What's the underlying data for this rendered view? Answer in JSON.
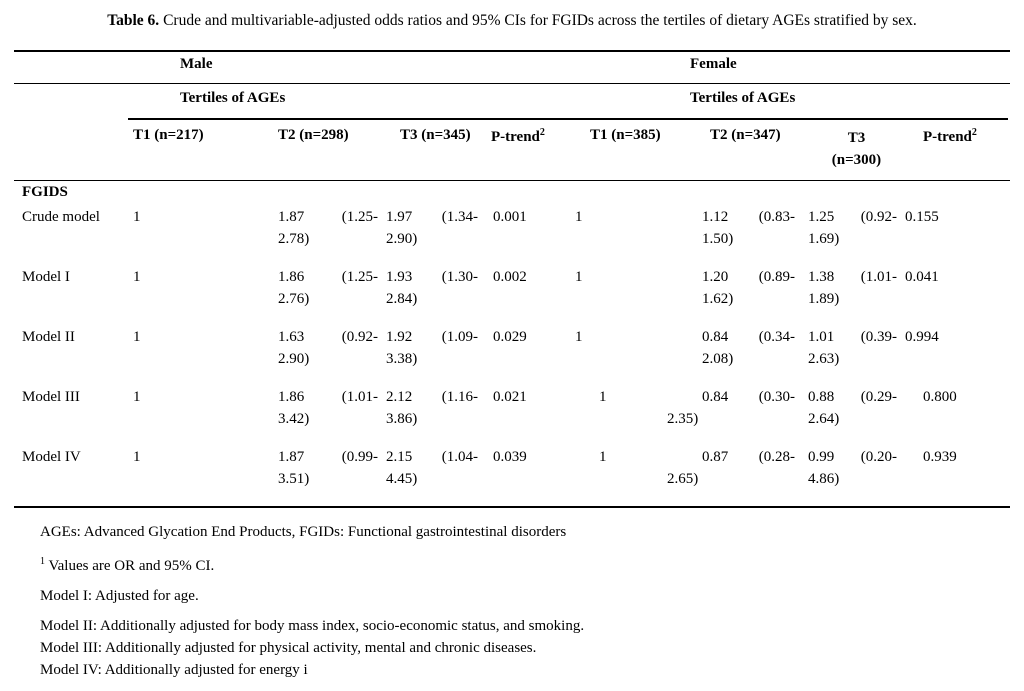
{
  "page": {
    "title_label": "Table 6.",
    "title_text": " Crude and multivariable-adjusted odds ratios and 95% CIs for FGIDs across the tertiles of dietary AGEs stratified by sex."
  },
  "table": {
    "groups": {
      "male": "Male",
      "female": "Female"
    },
    "tertiles_label": "Tertiles of AGEs",
    "headers": {
      "t1m": "T1 (n=217)",
      "t2m": "T2 (n=298)",
      "t3m": "T3 (n=345)",
      "pm": "P-trend",
      "pm_sup": "2",
      "t1f": "T1 (n=385)",
      "t2f": "T2 (n=347)",
      "t3f_line1": "T3",
      "t3f_line2": "(n=300)",
      "pf": "P-trend",
      "pf_sup": "2"
    },
    "section_label": "FGIDS",
    "rows": [
      {
        "label": "Crude model",
        "male": {
          "t1": "1",
          "t2_or": "1.87",
          "t2_ci1": "(1.25-",
          "t2_ci2": "2.78)",
          "t3_or": "1.97",
          "t3_ci1": "(1.34-",
          "t3_ci2": "2.90)",
          "p": "0.001"
        },
        "female": {
          "t1": "1",
          "t2_or": "1.12",
          "t2_ci1": "(0.83-",
          "t2_ci2": "1.50)",
          "t3_or": "1.25",
          "t3_ci1": "(0.92-",
          "t3_ci2": "1.69)",
          "p": "0.155"
        }
      },
      {
        "label": "Model I",
        "male": {
          "t1": "1",
          "t2_or": "1.86",
          "t2_ci1": "(1.25-",
          "t2_ci2": "2.76)",
          "t3_or": "1.93",
          "t3_ci1": "(1.30-",
          "t3_ci2": "2.84)",
          "p": "0.002"
        },
        "female": {
          "t1": "1",
          "t2_or": "1.20",
          "t2_ci1": "(0.89-",
          "t2_ci2": "1.62)",
          "t3_or": "1.38",
          "t3_ci1": "(1.01-",
          "t3_ci2": "1.89)",
          "p": "0.041"
        }
      },
      {
        "label": "Model II",
        "male": {
          "t1": "1",
          "t2_or": "1.63",
          "t2_ci1": "(0.92-",
          "t2_ci2": "2.90)",
          "t3_or": "1.92",
          "t3_ci1": "(1.09-",
          "t3_ci2": "3.38)",
          "p": "0.029"
        },
        "female": {
          "t1": "1",
          "t2_or": "0.84",
          "t2_ci1": "(0.34-",
          "t2_ci2": "2.08)",
          "t3_or": "1.01",
          "t3_ci1": "(0.39-",
          "t3_ci2": "2.63)",
          "p": "0.994"
        }
      },
      {
        "label": "Model III",
        "male": {
          "t1": "1",
          "t2_or": "1.86",
          "t2_ci1": "(1.01-",
          "t2_ci2": "3.42)",
          "t3_or": "2.12",
          "t3_ci1": "(1.16-",
          "t3_ci2": "3.86)",
          "p": "0.021"
        },
        "female": {
          "t1": "1",
          "t2_or": "0.84",
          "t2_ci1": "(0.30-",
          "t2_ci2": "2.35)",
          "t3_or": "0.88",
          "t3_ci1": "(0.29-",
          "t3_ci2": "2.64)",
          "p": "0.800"
        }
      },
      {
        "label": "Model IV",
        "male": {
          "t1": "1",
          "t2_or": "1.87",
          "t2_ci1": "(0.99-",
          "t2_ci2": "3.51)",
          "t3_or": "2.15",
          "t3_ci1": "(1.04-",
          "t3_ci2": "4.45)",
          "p": "0.039"
        },
        "female": {
          "t1": "1",
          "t2_or": "0.87",
          "t2_ci1": "(0.28-",
          "t2_ci2": "2.65)",
          "t3_or": "0.99",
          "t3_ci1": "(0.20-",
          "t3_ci2": "4.86)",
          "p": "0.939"
        }
      }
    ]
  },
  "footnotes": {
    "abbrev": "AGEs: Advanced Glycation End Products, FGIDs: Functional gastrointestinal disorders",
    "values_sup": "1",
    "values": " Values are OR and 95% CI.",
    "model1": "Model I: Adjusted for age.",
    "model2": "Model II: Additionally adjusted for body mass index, socio-economic status, and smoking.",
    "model3": "Model III: Additionally adjusted for physical activity, mental and chronic diseases.",
    "model4": "Model IV: Additionally adjusted for energy i"
  }
}
